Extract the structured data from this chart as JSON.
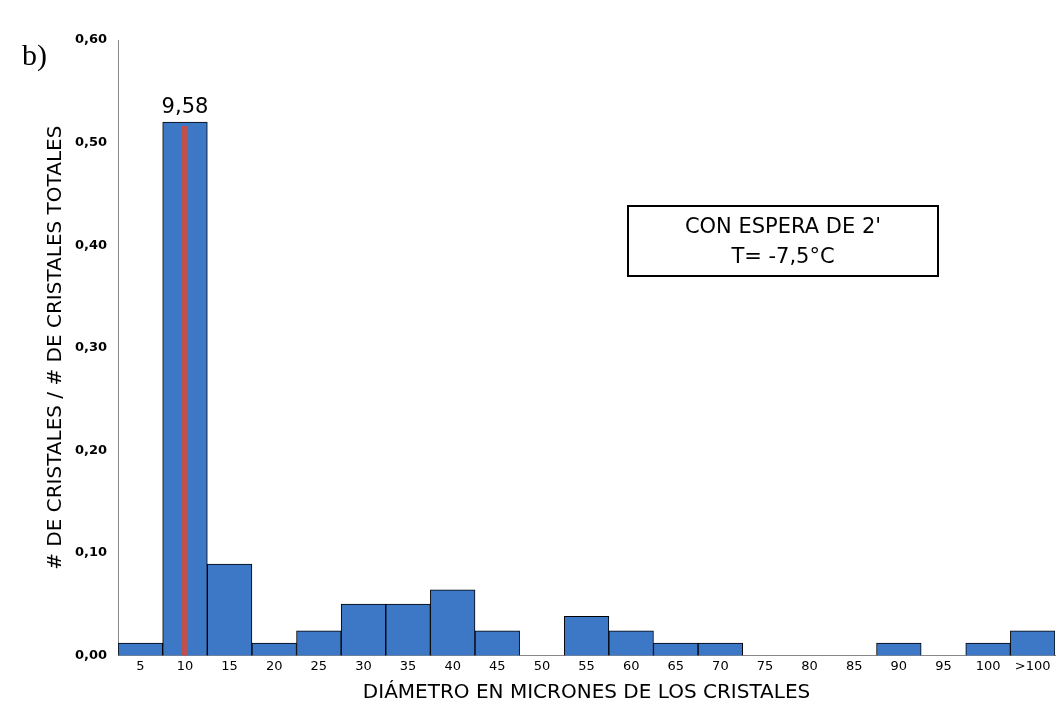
{
  "chart_data": {
    "type": "bar",
    "title": "b)",
    "xlabel": "DIÁMETRO EN MICRONES DE LOS CRISTALES",
    "ylabel": "# DE CRISTALES / # DE CRISTALES TOTALES",
    "categories": [
      "5",
      "10",
      "15",
      "20",
      "25",
      "30",
      "35",
      "40",
      "45",
      "50",
      "55",
      "60",
      "65",
      "70",
      "75",
      "80",
      "85",
      "90",
      "95",
      "100",
      ">100"
    ],
    "values": [
      0.012,
      0.52,
      0.089,
      0.012,
      0.024,
      0.05,
      0.05,
      0.064,
      0.024,
      0,
      0.038,
      0.024,
      0.012,
      0.012,
      0,
      0,
      0,
      0.012,
      0,
      0.012,
      0.024
    ],
    "color": "#3d78c6",
    "ylim": [
      0,
      0.6
    ],
    "yticks": [
      {
        "value": 0,
        "label": "0,00"
      },
      {
        "value": 0.1,
        "label": "0,10"
      },
      {
        "value": 0.2,
        "label": "0,20"
      },
      {
        "value": 0.3,
        "label": "0,30"
      },
      {
        "value": 0.4,
        "label": "0,40"
      },
      {
        "value": 0.5,
        "label": "0,50"
      },
      {
        "value": 0.6,
        "label": "0,60"
      }
    ],
    "ref_lines": [
      {
        "axis": "x",
        "value": "10",
        "label": "9,58",
        "color": "#c0504d"
      }
    ],
    "annotations": [
      "CON ESPERA DE 2'",
      "T= -7,5°C"
    ]
  }
}
